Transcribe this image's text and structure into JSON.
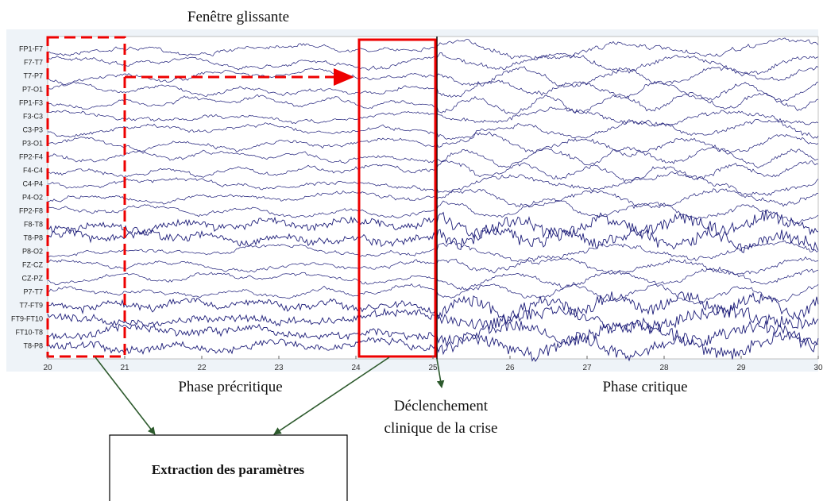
{
  "title": "Fenêtre glissante",
  "channels": [
    "FP1-F7",
    "F7-T7",
    "T7-P7",
    "P7-O1",
    "FP1-F3",
    "F3-C3",
    "C3-P3",
    "P3-O1",
    "FP2-F4",
    "F4-C4",
    "C4-P4",
    "P4-O2",
    "FP2-F8",
    "F8-T8",
    "T8-P8",
    "P8-O2",
    "FZ-CZ",
    "CZ-PZ",
    "P7-T7",
    "T7-FT9",
    "FT9-FT10",
    "FT10-T8",
    "T8-P8"
  ],
  "xticks": [
    20,
    21,
    22,
    23,
    24,
    25,
    26,
    27,
    28,
    29,
    30
  ],
  "phase_pre": "Phase précritique",
  "onset": [
    "Déclenchement",
    "clinique de la crise"
  ],
  "phase_crit": "Phase critique",
  "box": "Extraction des paramètres"
}
